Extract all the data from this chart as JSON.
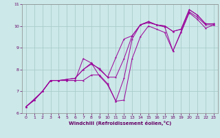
{
  "xlabel": "Windchill (Refroidissement éolien,°C)",
  "background_color": "#cce8e8",
  "line_color": "#990099",
  "grid_color": "#aacccc",
  "xlim": [
    -0.5,
    23.5
  ],
  "ylim": [
    6,
    11
  ],
  "yticks": [
    6,
    7,
    8,
    9,
    10,
    11
  ],
  "xticks": [
    0,
    1,
    2,
    3,
    4,
    5,
    6,
    7,
    8,
    9,
    10,
    11,
    12,
    13,
    14,
    15,
    16,
    17,
    18,
    19,
    20,
    21,
    22,
    23
  ],
  "series": [
    {
      "x": [
        0,
        1,
        2,
        3,
        4,
        5,
        6,
        7,
        8,
        9,
        10,
        11,
        12,
        13,
        14,
        15,
        16,
        17,
        18,
        19,
        20,
        21,
        22,
        23
      ],
      "y": [
        6.3,
        6.6,
        7.0,
        7.5,
        7.5,
        7.5,
        7.5,
        7.5,
        7.75,
        7.75,
        7.35,
        6.55,
        6.6,
        8.5,
        9.5,
        10.0,
        9.85,
        9.7,
        8.85,
        9.7,
        10.6,
        10.3,
        9.9,
        10.05
      ]
    },
    {
      "x": [
        0,
        1,
        2,
        3,
        4,
        5,
        6,
        7,
        8,
        9,
        10,
        11,
        12,
        13,
        14,
        15,
        16,
        17,
        18,
        19,
        20,
        21,
        22,
        23
      ],
      "y": [
        6.3,
        6.6,
        7.0,
        7.5,
        7.5,
        7.5,
        7.5,
        8.5,
        8.3,
        7.7,
        7.3,
        6.55,
        7.6,
        9.4,
        10.05,
        10.15,
        10.05,
        9.95,
        8.85,
        9.75,
        10.65,
        10.4,
        10.05,
        10.05
      ]
    },
    {
      "x": [
        0,
        1,
        2,
        3,
        4,
        5,
        6,
        7,
        8,
        9,
        10,
        11,
        12,
        13,
        14,
        15,
        16,
        17,
        18,
        19,
        20,
        21,
        22,
        23
      ],
      "y": [
        6.3,
        6.6,
        7.0,
        7.5,
        7.5,
        7.55,
        7.6,
        8.0,
        8.3,
        8.0,
        7.65,
        7.65,
        8.5,
        9.55,
        10.05,
        10.2,
        10.05,
        10.0,
        9.75,
        9.85,
        10.75,
        10.5,
        10.1,
        10.1
      ]
    },
    {
      "x": [
        0,
        2,
        3,
        4,
        5,
        6,
        7,
        8,
        9,
        10,
        11,
        12,
        13,
        14,
        15,
        16,
        17,
        18,
        19,
        20,
        21,
        22,
        23
      ],
      "y": [
        6.3,
        7.0,
        7.5,
        7.5,
        7.55,
        7.6,
        8.0,
        8.25,
        8.05,
        7.65,
        8.55,
        9.4,
        9.55,
        10.05,
        10.2,
        10.05,
        10.0,
        9.75,
        9.85,
        10.75,
        10.5,
        10.1,
        10.1
      ]
    }
  ]
}
